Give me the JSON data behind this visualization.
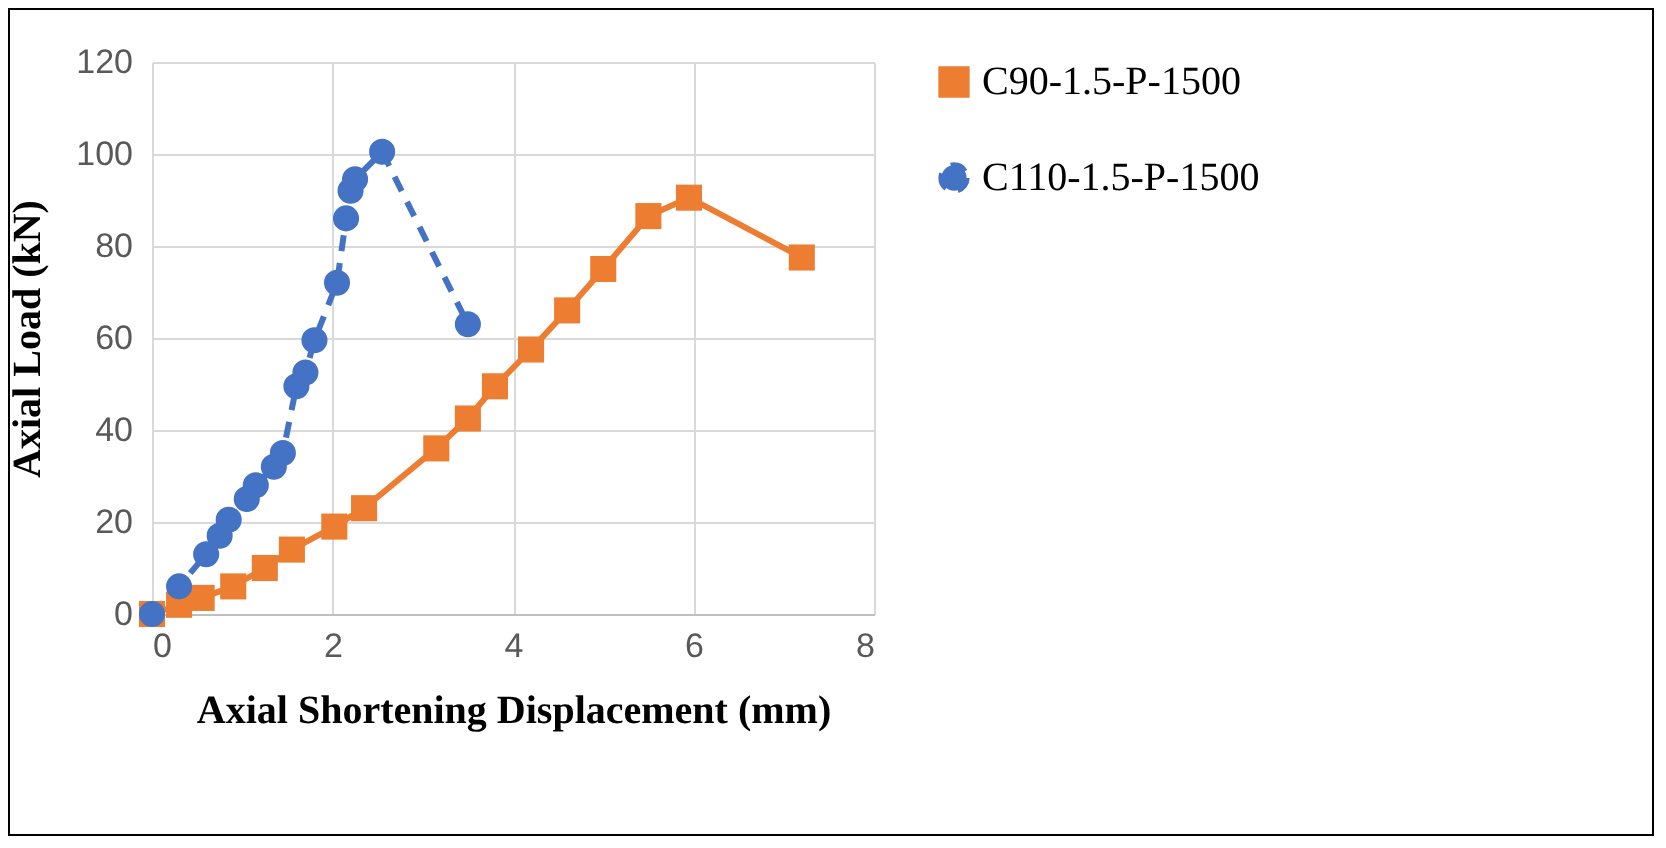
{
  "chart_data": {
    "type": "line",
    "xlabel": "Axial Shortening Displacement (mm)",
    "ylabel": "Axial Load (kN)",
    "xlim": [
      0,
      8
    ],
    "xticks": [
      0,
      2,
      4,
      6,
      8
    ],
    "ylim": [
      0,
      120
    ],
    "yticks": [
      0,
      20,
      40,
      60,
      80,
      100,
      120
    ],
    "grid": true,
    "legend": "right",
    "series": [
      {
        "name": "C90-1.5-P-1500",
        "color": "#ed7d31",
        "marker": "square",
        "line_style": "solid",
        "x": [
          0,
          0.3,
          0.55,
          0.9,
          1.25,
          1.55,
          2.02,
          2.35,
          3.15,
          3.5,
          3.8,
          4.2,
          4.6,
          5.0,
          5.5,
          5.95,
          7.2
        ],
        "values": [
          0,
          2,
          3.5,
          6,
          10,
          14,
          19,
          23,
          36,
          42.5,
          49.5,
          57.5,
          66,
          75,
          86.5,
          90.5,
          77.5
        ]
      },
      {
        "name": "C110-1.5-P-1500",
        "color": "#4472c4",
        "marker": "circle",
        "line_style": "dashed",
        "x": [
          0,
          0.3,
          0.6,
          0.75,
          0.85,
          1.05,
          1.15,
          1.35,
          1.45,
          1.6,
          1.7,
          1.8,
          2.05,
          2.15,
          2.2,
          2.25,
          2.55,
          3.5
        ],
        "values": [
          0,
          6,
          13,
          17,
          20.5,
          25,
          28,
          32,
          35,
          49.5,
          52.5,
          59.5,
          72,
          86,
          92,
          94.5,
          100.5,
          63
        ]
      }
    ]
  }
}
